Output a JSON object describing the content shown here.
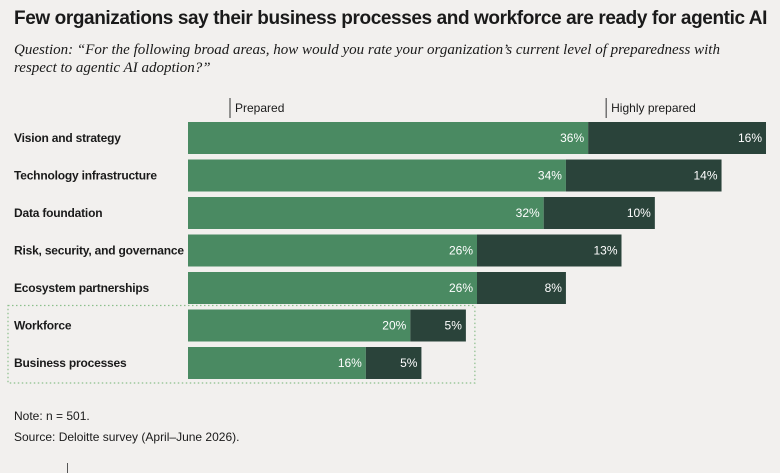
{
  "title": "Few organizations say their business processes and workforce are ready for agentic AI",
  "question": "Question: “For the following broad areas, how would you rate your organization’s current level of preparedness with respect to agentic AI adoption?”",
  "note": "Note: n = 501.",
  "source": "Source: Deloitte survey (April–June 2026).",
  "colors": {
    "prepared": "#4a8a62",
    "highly_prepared": "#2a433a",
    "highlight_border": "#8cbf8c",
    "background": "#f2f0ee"
  },
  "chart_data": {
    "type": "bar",
    "orientation": "horizontal",
    "stacked": true,
    "categories": [
      "Vision and strategy",
      "Technology infrastructure",
      "Data foundation",
      "Risk, security, and governance",
      "Ecosystem partnerships",
      "Workforce",
      "Business processes"
    ],
    "series": [
      {
        "name": "Prepared",
        "values": [
          36,
          34,
          32,
          26,
          26,
          20,
          16
        ]
      },
      {
        "name": "Highly prepared",
        "values": [
          16,
          14,
          10,
          13,
          8,
          5,
          5
        ]
      }
    ],
    "value_suffix": "%",
    "highlighted_categories": [
      "Workforce",
      "Business processes"
    ],
    "legend": "top, labels above bar segments",
    "grid": false,
    "xlim": [
      0,
      52
    ]
  }
}
